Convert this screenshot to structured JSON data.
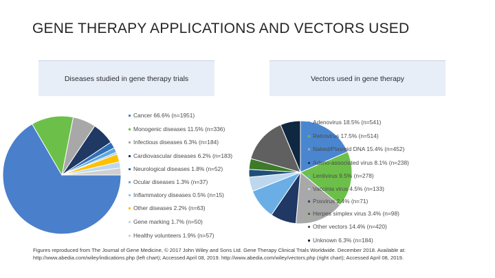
{
  "title": "GENE THERAPY APPLICATIONS AND VECTORS USED",
  "footnote": "Figures reproduced from The Journal of Gene Medicine, © 2017 John Wiley and Sons Ltd. Gene Therapy Clinical Trials Worldwide. December 2018. Available at: http://www.abedia.com/wiley/indications.php (left chart); Accessed April 08, 2019. http://www.abedia.com/wiley/vectors.php (right chart); Accessed April 08, 2019.",
  "chart_data": [
    {
      "type": "pie",
      "title": "Diseases studied in gene therapy trials",
      "legend_position": "right",
      "slices": [
        {
          "label": "Cancer 66.6% (n=1951)",
          "value": 66.6,
          "color": "#4a7fcb"
        },
        {
          "label": "Monogenic diseases 11.5% (n=336)",
          "value": 11.5,
          "color": "#6cc04a"
        },
        {
          "label": "Infectious diseases 6.3% (n=184)",
          "value": 6.3,
          "color": "#a8a8a8"
        },
        {
          "label": "Cardiovascular diseases 6.2% (n=183)",
          "value": 6.2,
          "color": "#1f3864"
        },
        {
          "label": "Neurological diseases 1.8% (n=52)",
          "value": 1.8,
          "color": "#2f6fb5"
        },
        {
          "label": "Ocular diseases 1.3% (n=37)",
          "value": 1.3,
          "color": "#5fa8e0"
        },
        {
          "label": "Inflammatory diseases 0.5% (n=15)",
          "value": 0.5,
          "color": "#9dc3e6"
        },
        {
          "label": "Other diseases 2.2% (n=63)",
          "value": 2.2,
          "color": "#ffc000"
        },
        {
          "label": "Gene marking 1.7% (n=50)",
          "value": 1.7,
          "color": "#bdd7ee"
        },
        {
          "label": "Healthy volunteers 1.9% (n=57)",
          "value": 1.9,
          "color": "#d0d0d0"
        }
      ]
    },
    {
      "type": "pie",
      "title": "Vectors used in gene therapy",
      "legend_position": "right",
      "slices": [
        {
          "label": "Adenovirus 18.5% (n=541)",
          "value": 18.5,
          "color": "#4a86d0"
        },
        {
          "label": "Retrovirus 17.5% (n=514)",
          "value": 17.5,
          "color": "#6cc04a"
        },
        {
          "label": "Naked/Plasmid DNA 15.4% (n=452)",
          "value": 15.4,
          "color": "#a8a8a8"
        },
        {
          "label": "Adeno-associated virus 8.1% (n=238)",
          "value": 8.1,
          "color": "#1f3864"
        },
        {
          "label": "Lentivirus 9.5% (n=278)",
          "value": 9.5,
          "color": "#6baee6"
        },
        {
          "label": "Vaccinia virus 4.5% (n=133)",
          "value": 4.5,
          "color": "#bdd7ee"
        },
        {
          "label": "Poxvirus 2.4% (n=71)",
          "value": 2.4,
          "color": "#1f4e79"
        },
        {
          "label": "Herpes simplex virus 3.4% (n=98)",
          "value": 3.4,
          "color": "#3d7a2a"
        },
        {
          "label": "Other vectors 14.4% (n=420)",
          "value": 14.4,
          "color": "#606060"
        },
        {
          "label": "Unknown 6.3% (n=184)",
          "value": 6.3,
          "color": "#0f2740"
        }
      ]
    }
  ]
}
